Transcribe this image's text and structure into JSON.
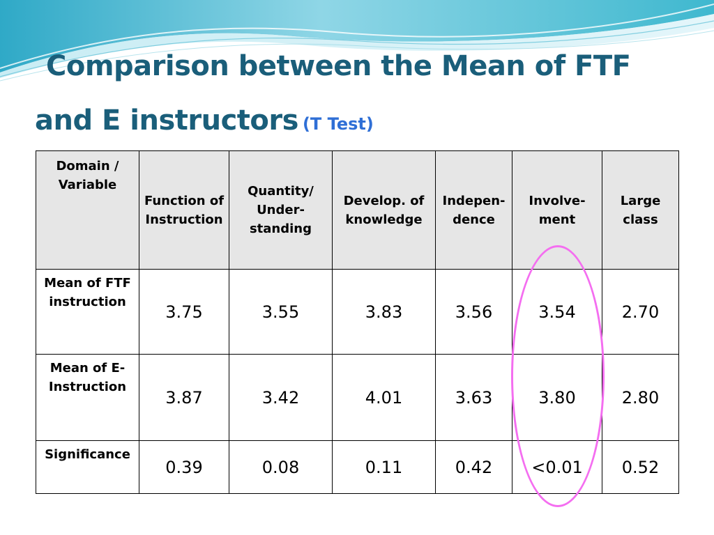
{
  "title": {
    "line1": "Comparison between the Mean of FTF",
    "line2": "and E instructors",
    "subtitle": "(T Test)"
  },
  "table": {
    "corner_label": "Domain / Variable",
    "columns": [
      "Function of Instruction",
      "Quantity/ Under-standing",
      "Develop. of knowledge",
      "Indepen-dence",
      "Involve-ment",
      "Large class"
    ],
    "rows": [
      {
        "label": "Mean of FTF instruction",
        "values": [
          "3.75",
          "3.55",
          "3.83",
          "3.56",
          "3.54",
          "2.70"
        ]
      },
      {
        "label": "Mean of E-Instruction",
        "values": [
          "3.87",
          "3.42",
          "4.01",
          "3.63",
          "3.80",
          "2.80"
        ]
      },
      {
        "label": "Significance",
        "values": [
          "0.39",
          "0.08",
          "0.11",
          "0.42",
          "<0.01",
          "0.52"
        ]
      }
    ],
    "highlighted_column": "Involve-ment",
    "highlight_color": "#f46ef0",
    "header_bg_color": "#e6e6e6"
  },
  "colors": {
    "title": "#1a5e7a",
    "subtitle": "#2f6fd6",
    "decoration": "#3fb8cf"
  }
}
